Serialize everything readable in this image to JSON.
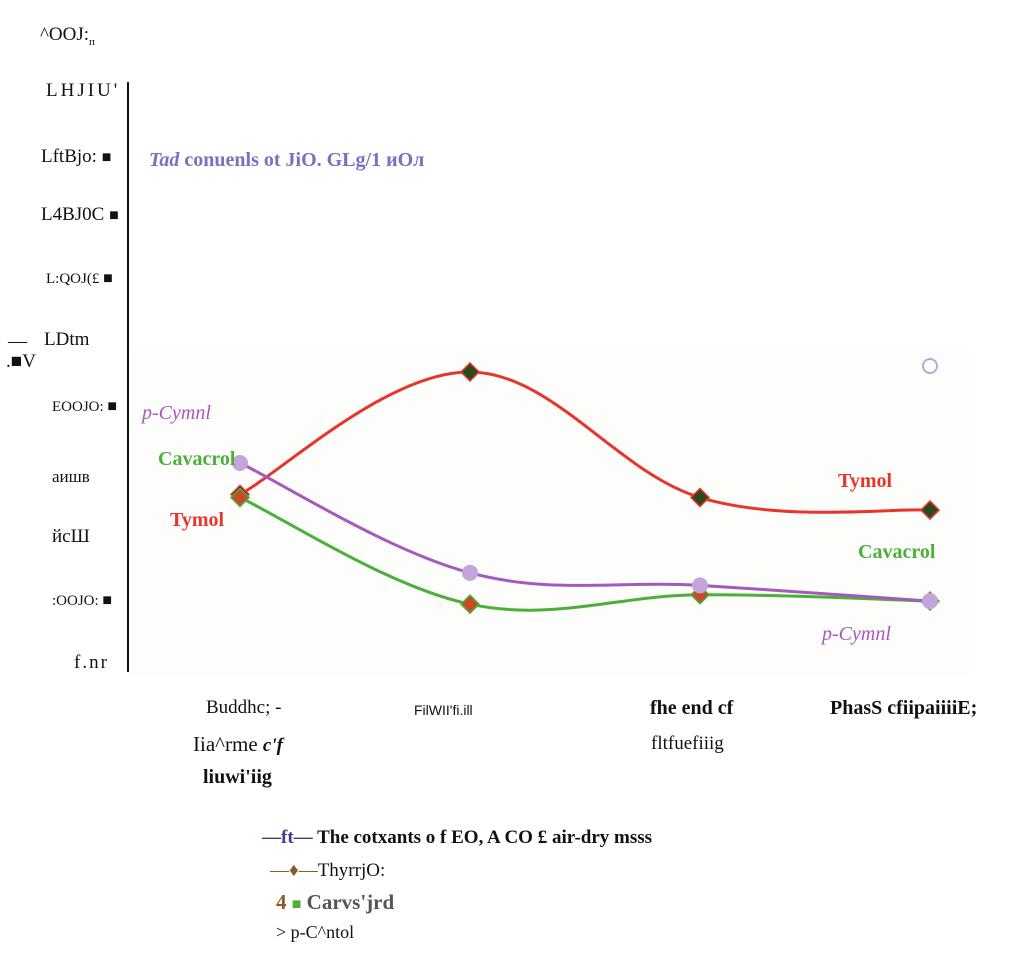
{
  "header": {
    "top_text": "^OOJ:",
    "top_sub": "п"
  },
  "axis": {
    "ticks": [
      {
        "text": "LHJIU'"
      },
      {
        "text": "LftBjo:"
      },
      {
        "text": "L4BJ0C"
      },
      {
        "text": "L:QOJ(£"
      },
      {
        "text": "LDtm"
      },
      {
        "text": "EOOJO:"
      },
      {
        "text": "аишв"
      },
      {
        "text": "йсШ"
      },
      {
        "text": ":OOJO:"
      },
      {
        "text": "f.nr"
      }
    ],
    "dash": "—",
    "v_label": ".■V",
    "square": "■"
  },
  "chart_title": {
    "italic": "Tad",
    "rest": "conuenls ot JiO. GLg/1 иОл"
  },
  "categories": [
    {
      "line1": "Buddhc; -",
      "line2": "Iia^rme",
      "line2b": "c'f",
      "line3": "liuwi'iig"
    },
    {
      "line1": "FilWII'fi.ill"
    },
    {
      "line1": "fhe end cf",
      "line2": "fltfuefiiig"
    },
    {
      "line1": "PhasS cfiipaiiiiE;"
    }
  ],
  "curve_labels": {
    "thymol_left": "Tymol",
    "carvacrol_left": "Cavacrol",
    "pcymene_left": "p-Cymnl",
    "thymol_right": "Tymol",
    "carvacrol_right": "Cavacrol",
    "pcymene_right": "p-Cymnl"
  },
  "legend": {
    "line1_mark": "—ft—",
    "line1_text": "The cotxants o f EO, A CO £ air-dry msss",
    "line2_mark": "—♦—",
    "line2_text": "ThyrrjO:",
    "line3_num": "4",
    "line3_mark": "■",
    "line3_text": "Carvs'jrd",
    "line4_mark": ">",
    "line4_text": "p-C^ntol"
  },
  "colors": {
    "thymol": "#e8352b",
    "carvacrol": "#4caf3a",
    "pcymene": "#a659bd",
    "title": "#7b6fc0",
    "legend_title": "#3b3f8f",
    "brown": "#8a5a2b"
  },
  "chart_data": {
    "type": "line",
    "categories": [
      "Buddhc; - Iia^rme c'f liuwi'iig",
      "FilWII'fi.ill",
      "fhe end cf fltfuefiiig",
      "PhasS cfiipaiiiiE;"
    ],
    "y_tick_labels": [
      "LHJIU'",
      "LftBjo:",
      "L4BJ0C",
      "L:QOJ(£",
      "LDtm",
      "EOOJO:",
      "аишв",
      "йсШ",
      ":OOJO:",
      "f.nr"
    ],
    "ylim": [
      0,
      9
    ],
    "series": [
      {
        "name": "ThyrrjO:",
        "values": [
          4.8,
          8.7,
          4.7,
          4.3
        ]
      },
      {
        "name": "Carvs'jrd",
        "values": [
          4.7,
          1.3,
          1.6,
          1.4
        ]
      },
      {
        "name": "p-C^ntol",
        "values": [
          5.8,
          2.3,
          1.9,
          1.4
        ]
      }
    ]
  }
}
